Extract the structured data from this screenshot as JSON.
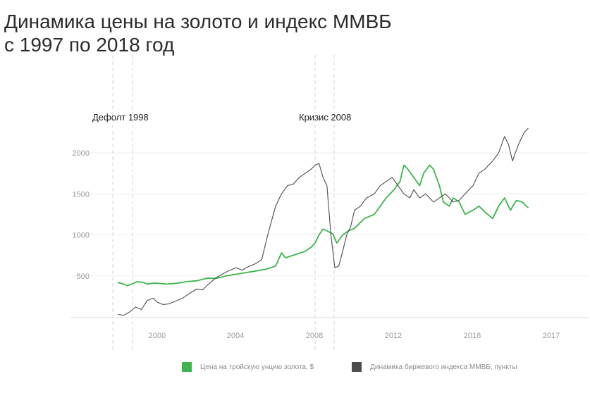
{
  "title_line1": "Динамика цены на золото и индекс ММВБ",
  "title_line2": "с 1997 по 2018 год",
  "chart_data": {
    "type": "line",
    "title": "Динамика цены на золото и индекс ММВБ с 1997 по 2018 год",
    "x_range": [
      1997.4,
      2018.9
    ],
    "y_range": [
      0,
      2350
    ],
    "x_ticks": [
      {
        "value": 2000,
        "label": "2000"
      },
      {
        "value": 2004,
        "label": "2004"
      },
      {
        "value": 2008,
        "label": "2008"
      },
      {
        "value": 2012,
        "label": "2012"
      },
      {
        "value": 2016,
        "label": "2016"
      },
      {
        "value": 2017,
        "label": "2017"
      }
    ],
    "y_ticks": [
      500,
      1000,
      1500,
      2000
    ],
    "grid": "horizontal",
    "legend_position": "bottom",
    "annotations": [
      {
        "text": "Дефолт 1998",
        "x": [
          1998.5,
          1999.5
        ]
      },
      {
        "text": "Кризис 2008",
        "x": [
          2008,
          2009
        ]
      }
    ],
    "series": [
      {
        "name": "Цена на тройскую унцию золота, $",
        "color": "#3cb54a",
        "x": [
          1998.0,
          1998.3,
          1998.5,
          1998.7,
          1999.0,
          1999.3,
          1999.5,
          1999.8,
          2000.0,
          2000.5,
          2001.0,
          2001.5,
          2002.0,
          2002.5,
          2003.0,
          2003.5,
          2004.0,
          2004.5,
          2005.0,
          2005.5,
          2006.0,
          2006.3,
          2006.5,
          2007.0,
          2007.5,
          2007.8,
          2008.0,
          2008.2,
          2008.4,
          2008.6,
          2008.9,
          2009.1,
          2009.4,
          2009.7,
          2010.0,
          2010.5,
          2011.0,
          2011.3,
          2011.6,
          2012.0,
          2012.3,
          2012.5,
          2012.7,
          2013.0,
          2013.3,
          2013.5,
          2013.8,
          2014.0,
          2014.3,
          2014.5,
          2014.8,
          2015.0,
          2015.3,
          2015.6,
          2016.0,
          2016.3,
          2016.6,
          2017.0,
          2017.3,
          2017.6,
          2017.9,
          2018.2,
          2018.5,
          2018.8
        ],
        "values": [
          420,
          400,
          380,
          400,
          430,
          420,
          400,
          410,
          410,
          400,
          410,
          430,
          440,
          470,
          470,
          500,
          520,
          540,
          560,
          580,
          620,
          780,
          720,
          760,
          800,
          850,
          900,
          1000,
          1070,
          1050,
          1010,
          900,
          1000,
          1050,
          1080,
          1200,
          1250,
          1350,
          1450,
          1550,
          1650,
          1850,
          1800,
          1700,
          1600,
          1750,
          1850,
          1800,
          1600,
          1400,
          1350,
          1450,
          1400,
          1250,
          1300,
          1350,
          1280,
          1200,
          1350,
          1450,
          1300,
          1420,
          1400,
          1330
        ]
      },
      {
        "name": "Динамика биржевого индекса ММВБ, пункты",
        "color": "#4d4d4d",
        "x": [
          1998.0,
          1998.3,
          1998.6,
          1998.9,
          1999.2,
          1999.5,
          1999.8,
          2000.0,
          2000.3,
          2000.6,
          2001.0,
          2001.3,
          2001.6,
          2002.0,
          2002.3,
          2002.6,
          2003.0,
          2003.3,
          2003.6,
          2004.0,
          2004.3,
          2004.6,
          2005.0,
          2005.3,
          2005.6,
          2006.0,
          2006.3,
          2006.6,
          2006.9,
          2007.2,
          2007.5,
          2007.8,
          2008.0,
          2008.2,
          2008.4,
          2008.6,
          2008.8,
          2009.0,
          2009.2,
          2009.4,
          2009.6,
          2009.8,
          2010.0,
          2010.3,
          2010.6,
          2011.0,
          2011.3,
          2011.6,
          2011.9,
          2012.2,
          2012.5,
          2012.8,
          2013.0,
          2013.3,
          2013.6,
          2014.0,
          2014.3,
          2014.6,
          2015.0,
          2015.3,
          2015.6,
          2016.0,
          2016.3,
          2016.6,
          2017.0,
          2017.3,
          2017.6,
          2017.8,
          2018.0,
          2018.3,
          2018.6,
          2018.8
        ],
        "values": [
          30,
          20,
          60,
          120,
          90,
          200,
          230,
          180,
          150,
          160,
          200,
          230,
          280,
          340,
          330,
          400,
          480,
          520,
          560,
          600,
          570,
          610,
          650,
          700,
          1000,
          1350,
          1500,
          1600,
          1620,
          1700,
          1750,
          1800,
          1850,
          1870,
          1700,
          1600,
          1000,
          600,
          620,
          800,
          1000,
          1100,
          1300,
          1350,
          1450,
          1500,
          1600,
          1650,
          1700,
          1600,
          1500,
          1450,
          1550,
          1450,
          1500,
          1400,
          1450,
          1500,
          1400,
          1420,
          1500,
          1600,
          1750,
          1800,
          1900,
          2000,
          2200,
          2100,
          1900,
          2100,
          2250,
          2300
        ]
      }
    ]
  }
}
